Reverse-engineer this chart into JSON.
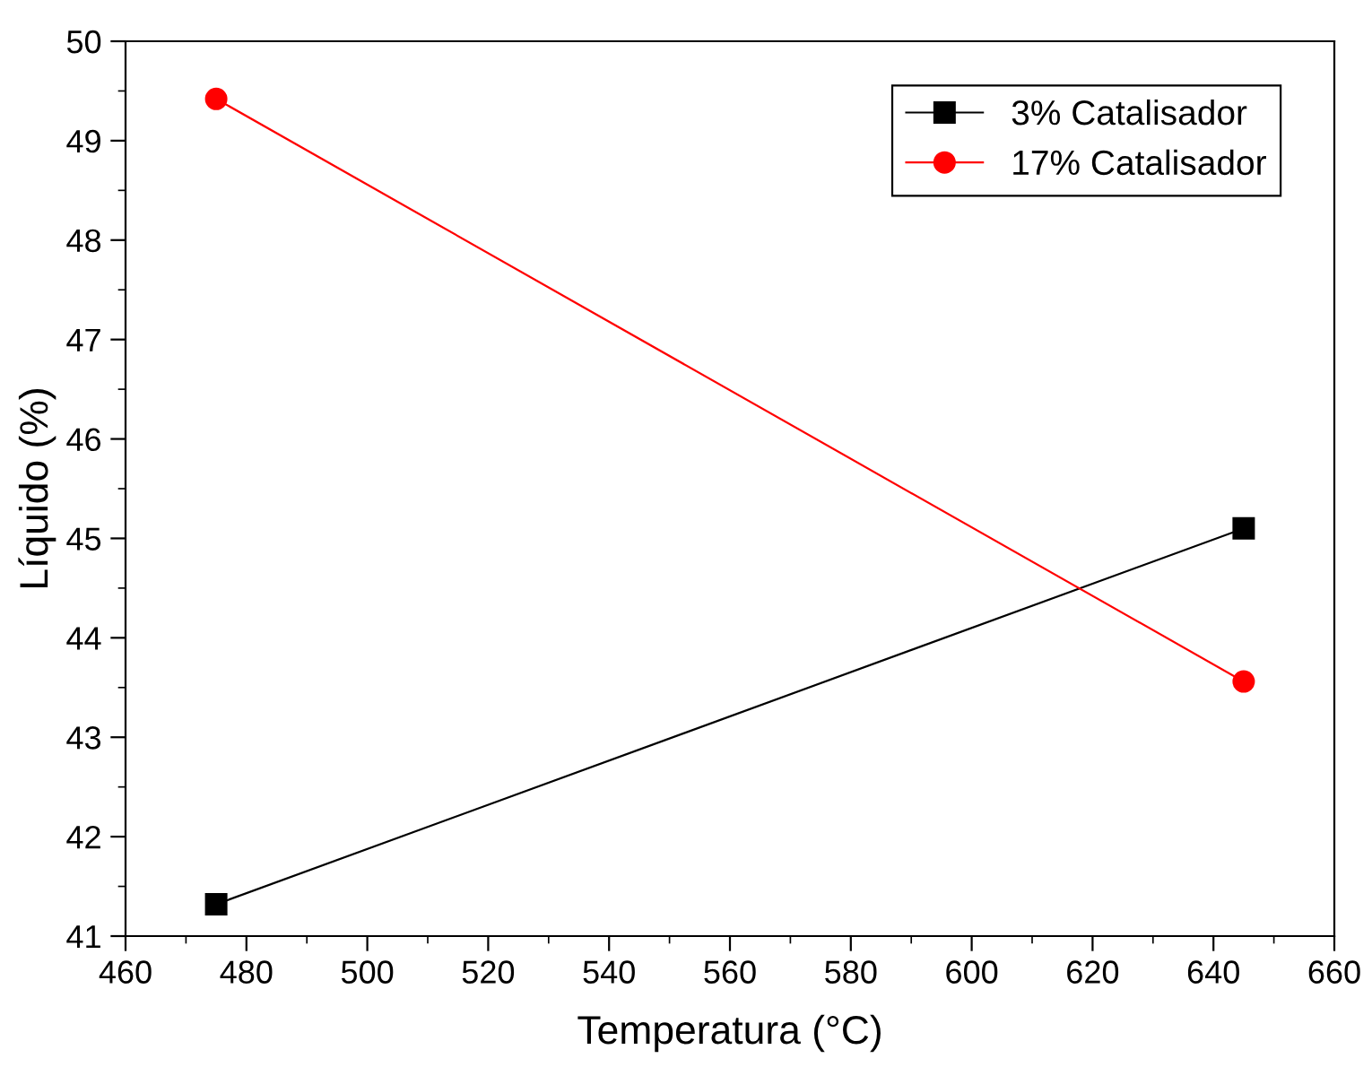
{
  "chart_data": {
    "type": "line",
    "xlabel": "Temperatura (°C)",
    "ylabel": "Líquido (%)",
    "xlim": [
      460,
      660
    ],
    "xticks": [
      460,
      480,
      500,
      520,
      540,
      560,
      580,
      600,
      620,
      640,
      660
    ],
    "ylim": [
      41,
      50
    ],
    "yticks": [
      41,
      42,
      43,
      44,
      45,
      46,
      47,
      48,
      49,
      50
    ],
    "grid": false,
    "legend": "top right",
    "x": [
      475,
      645
    ],
    "series": [
      {
        "name": "3% Catalisador",
        "color": "#000000",
        "marker": "square",
        "values": [
          41.32,
          45.1
        ]
      },
      {
        "name": "17% Catalisador",
        "color": "#ff0000",
        "marker": "circle",
        "values": [
          49.42,
          43.56
        ]
      }
    ]
  }
}
